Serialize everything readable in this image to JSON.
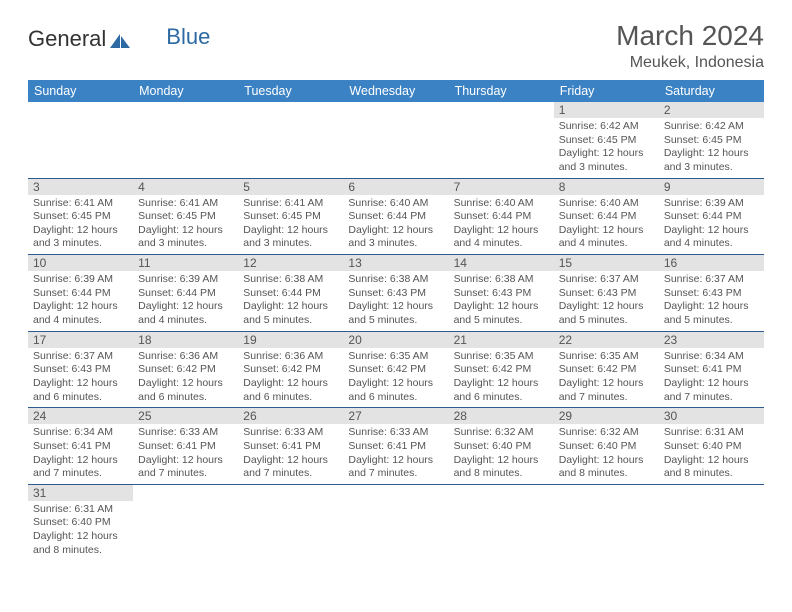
{
  "logo": {
    "text1": "General",
    "text2": "Blue"
  },
  "title": "March 2024",
  "location": "Meukek, Indonesia",
  "colors": {
    "header_bg": "#3b82c4",
    "header_text": "#ffffff",
    "daynum_bg": "#e3e3e3",
    "border": "#2d5a8f",
    "text": "#555555",
    "logo_blue": "#2d6aa3"
  },
  "daynames": [
    "Sunday",
    "Monday",
    "Tuesday",
    "Wednesday",
    "Thursday",
    "Friday",
    "Saturday"
  ],
  "weeks": [
    [
      null,
      null,
      null,
      null,
      null,
      {
        "n": "1",
        "sr": "Sunrise: 6:42 AM",
        "ss": "Sunset: 6:45 PM",
        "dl": "Daylight: 12 hours and 3 minutes."
      },
      {
        "n": "2",
        "sr": "Sunrise: 6:42 AM",
        "ss": "Sunset: 6:45 PM",
        "dl": "Daylight: 12 hours and 3 minutes."
      }
    ],
    [
      {
        "n": "3",
        "sr": "Sunrise: 6:41 AM",
        "ss": "Sunset: 6:45 PM",
        "dl": "Daylight: 12 hours and 3 minutes."
      },
      {
        "n": "4",
        "sr": "Sunrise: 6:41 AM",
        "ss": "Sunset: 6:45 PM",
        "dl": "Daylight: 12 hours and 3 minutes."
      },
      {
        "n": "5",
        "sr": "Sunrise: 6:41 AM",
        "ss": "Sunset: 6:45 PM",
        "dl": "Daylight: 12 hours and 3 minutes."
      },
      {
        "n": "6",
        "sr": "Sunrise: 6:40 AM",
        "ss": "Sunset: 6:44 PM",
        "dl": "Daylight: 12 hours and 3 minutes."
      },
      {
        "n": "7",
        "sr": "Sunrise: 6:40 AM",
        "ss": "Sunset: 6:44 PM",
        "dl": "Daylight: 12 hours and 4 minutes."
      },
      {
        "n": "8",
        "sr": "Sunrise: 6:40 AM",
        "ss": "Sunset: 6:44 PM",
        "dl": "Daylight: 12 hours and 4 minutes."
      },
      {
        "n": "9",
        "sr": "Sunrise: 6:39 AM",
        "ss": "Sunset: 6:44 PM",
        "dl": "Daylight: 12 hours and 4 minutes."
      }
    ],
    [
      {
        "n": "10",
        "sr": "Sunrise: 6:39 AM",
        "ss": "Sunset: 6:44 PM",
        "dl": "Daylight: 12 hours and 4 minutes."
      },
      {
        "n": "11",
        "sr": "Sunrise: 6:39 AM",
        "ss": "Sunset: 6:44 PM",
        "dl": "Daylight: 12 hours and 4 minutes."
      },
      {
        "n": "12",
        "sr": "Sunrise: 6:38 AM",
        "ss": "Sunset: 6:44 PM",
        "dl": "Daylight: 12 hours and 5 minutes."
      },
      {
        "n": "13",
        "sr": "Sunrise: 6:38 AM",
        "ss": "Sunset: 6:43 PM",
        "dl": "Daylight: 12 hours and 5 minutes."
      },
      {
        "n": "14",
        "sr": "Sunrise: 6:38 AM",
        "ss": "Sunset: 6:43 PM",
        "dl": "Daylight: 12 hours and 5 minutes."
      },
      {
        "n": "15",
        "sr": "Sunrise: 6:37 AM",
        "ss": "Sunset: 6:43 PM",
        "dl": "Daylight: 12 hours and 5 minutes."
      },
      {
        "n": "16",
        "sr": "Sunrise: 6:37 AM",
        "ss": "Sunset: 6:43 PM",
        "dl": "Daylight: 12 hours and 5 minutes."
      }
    ],
    [
      {
        "n": "17",
        "sr": "Sunrise: 6:37 AM",
        "ss": "Sunset: 6:43 PM",
        "dl": "Daylight: 12 hours and 6 minutes."
      },
      {
        "n": "18",
        "sr": "Sunrise: 6:36 AM",
        "ss": "Sunset: 6:42 PM",
        "dl": "Daylight: 12 hours and 6 minutes."
      },
      {
        "n": "19",
        "sr": "Sunrise: 6:36 AM",
        "ss": "Sunset: 6:42 PM",
        "dl": "Daylight: 12 hours and 6 minutes."
      },
      {
        "n": "20",
        "sr": "Sunrise: 6:35 AM",
        "ss": "Sunset: 6:42 PM",
        "dl": "Daylight: 12 hours and 6 minutes."
      },
      {
        "n": "21",
        "sr": "Sunrise: 6:35 AM",
        "ss": "Sunset: 6:42 PM",
        "dl": "Daylight: 12 hours and 6 minutes."
      },
      {
        "n": "22",
        "sr": "Sunrise: 6:35 AM",
        "ss": "Sunset: 6:42 PM",
        "dl": "Daylight: 12 hours and 7 minutes."
      },
      {
        "n": "23",
        "sr": "Sunrise: 6:34 AM",
        "ss": "Sunset: 6:41 PM",
        "dl": "Daylight: 12 hours and 7 minutes."
      }
    ],
    [
      {
        "n": "24",
        "sr": "Sunrise: 6:34 AM",
        "ss": "Sunset: 6:41 PM",
        "dl": "Daylight: 12 hours and 7 minutes."
      },
      {
        "n": "25",
        "sr": "Sunrise: 6:33 AM",
        "ss": "Sunset: 6:41 PM",
        "dl": "Daylight: 12 hours and 7 minutes."
      },
      {
        "n": "26",
        "sr": "Sunrise: 6:33 AM",
        "ss": "Sunset: 6:41 PM",
        "dl": "Daylight: 12 hours and 7 minutes."
      },
      {
        "n": "27",
        "sr": "Sunrise: 6:33 AM",
        "ss": "Sunset: 6:41 PM",
        "dl": "Daylight: 12 hours and 7 minutes."
      },
      {
        "n": "28",
        "sr": "Sunrise: 6:32 AM",
        "ss": "Sunset: 6:40 PM",
        "dl": "Daylight: 12 hours and 8 minutes."
      },
      {
        "n": "29",
        "sr": "Sunrise: 6:32 AM",
        "ss": "Sunset: 6:40 PM",
        "dl": "Daylight: 12 hours and 8 minutes."
      },
      {
        "n": "30",
        "sr": "Sunrise: 6:31 AM",
        "ss": "Sunset: 6:40 PM",
        "dl": "Daylight: 12 hours and 8 minutes."
      }
    ],
    [
      {
        "n": "31",
        "sr": "Sunrise: 6:31 AM",
        "ss": "Sunset: 6:40 PM",
        "dl": "Daylight: 12 hours and 8 minutes."
      },
      null,
      null,
      null,
      null,
      null,
      null
    ]
  ]
}
